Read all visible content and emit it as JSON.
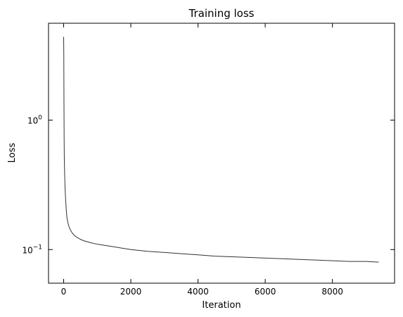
{
  "chart_data": {
    "type": "line",
    "title": "Training loss",
    "xlabel": "Iteration",
    "ylabel": "Loss",
    "x_ticks": [
      0,
      2000,
      4000,
      6000,
      8000
    ],
    "y_scale": "log",
    "y_ticks": [
      {
        "value": 0.1,
        "label_base": "10",
        "label_exp": "−1"
      },
      {
        "value": 1,
        "label_base": "10",
        "label_exp": "0"
      }
    ],
    "xlim": [
      -450,
      9850
    ],
    "ylim": [
      0.055,
      5.6
    ],
    "grid": false,
    "series": [
      {
        "color": "#333333",
        "x": [
          0,
          5,
          10,
          15,
          20,
          30,
          40,
          50,
          60,
          80,
          100,
          130,
          160,
          200,
          250,
          300,
          400,
          500,
          600,
          800,
          1000,
          1200,
          1500,
          1800,
          2000,
          2500,
          3000,
          3500,
          4000,
          4500,
          5000,
          5500,
          6000,
          6500,
          7000,
          7500,
          8000,
          8500,
          9000,
          9380
        ],
        "y": [
          4.4,
          3.2,
          1.3,
          0.7,
          0.5,
          0.38,
          0.31,
          0.27,
          0.24,
          0.2,
          0.175,
          0.16,
          0.15,
          0.142,
          0.135,
          0.13,
          0.124,
          0.12,
          0.117,
          0.113,
          0.11,
          0.108,
          0.105,
          0.102,
          0.1,
          0.097,
          0.095,
          0.093,
          0.091,
          0.089,
          0.088,
          0.087,
          0.086,
          0.085,
          0.084,
          0.083,
          0.082,
          0.081,
          0.081,
          0.08
        ]
      }
    ]
  }
}
